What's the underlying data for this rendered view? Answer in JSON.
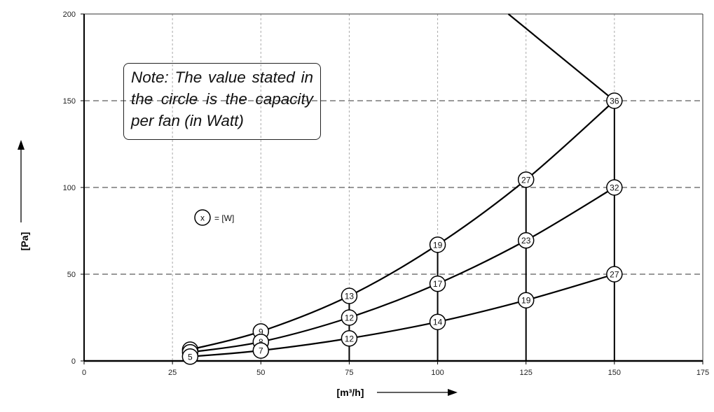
{
  "chart_data": {
    "type": "line",
    "xlabel": "[m³/h]",
    "ylabel": "[Pa]",
    "xlim": [
      0,
      175
    ],
    "ylim": [
      0,
      200
    ],
    "x_ticks": [
      "0",
      "25",
      "50",
      "75",
      "100",
      "125",
      "150",
      "175"
    ],
    "y_ticks": [
      "0",
      "50",
      "100",
      "150",
      "200"
    ],
    "grid": {
      "horizontal": "dashed at 50, 100, 150",
      "vertical": "dotted at 25-150"
    },
    "note": "Note: The value stated in the circle is the capacity per fan (in Watt)",
    "legend_symbol": "x",
    "legend_text": "= [W]",
    "series": [
      {
        "points": [
          [
            30,
            6.5
          ],
          [
            50,
            17
          ],
          [
            75,
            37.5
          ],
          [
            100,
            67
          ],
          [
            125,
            104.5
          ],
          [
            150,
            150
          ]
        ],
        "labels": [
          "6",
          "9",
          "13",
          "19",
          "27",
          "36"
        ]
      },
      {
        "points": [
          [
            30,
            5
          ],
          [
            50,
            11
          ],
          [
            75,
            25
          ],
          [
            100,
            44.5
          ],
          [
            125,
            69.5
          ],
          [
            150,
            100
          ]
        ],
        "labels": [
          "",
          "8",
          "12",
          "17",
          "23",
          "32"
        ]
      },
      {
        "points": [
          [
            30,
            2.5
          ],
          [
            50,
            6
          ],
          [
            75,
            13
          ],
          [
            100,
            22.5
          ],
          [
            125,
            35
          ],
          [
            150,
            50
          ]
        ],
        "labels": [
          "5",
          "7",
          "12",
          "14",
          "19",
          "27"
        ]
      }
    ],
    "extra_line": [
      [
        120,
        200
      ],
      [
        150,
        150
      ]
    ],
    "vertical_lines_x": [
      75,
      100,
      125,
      150
    ]
  }
}
